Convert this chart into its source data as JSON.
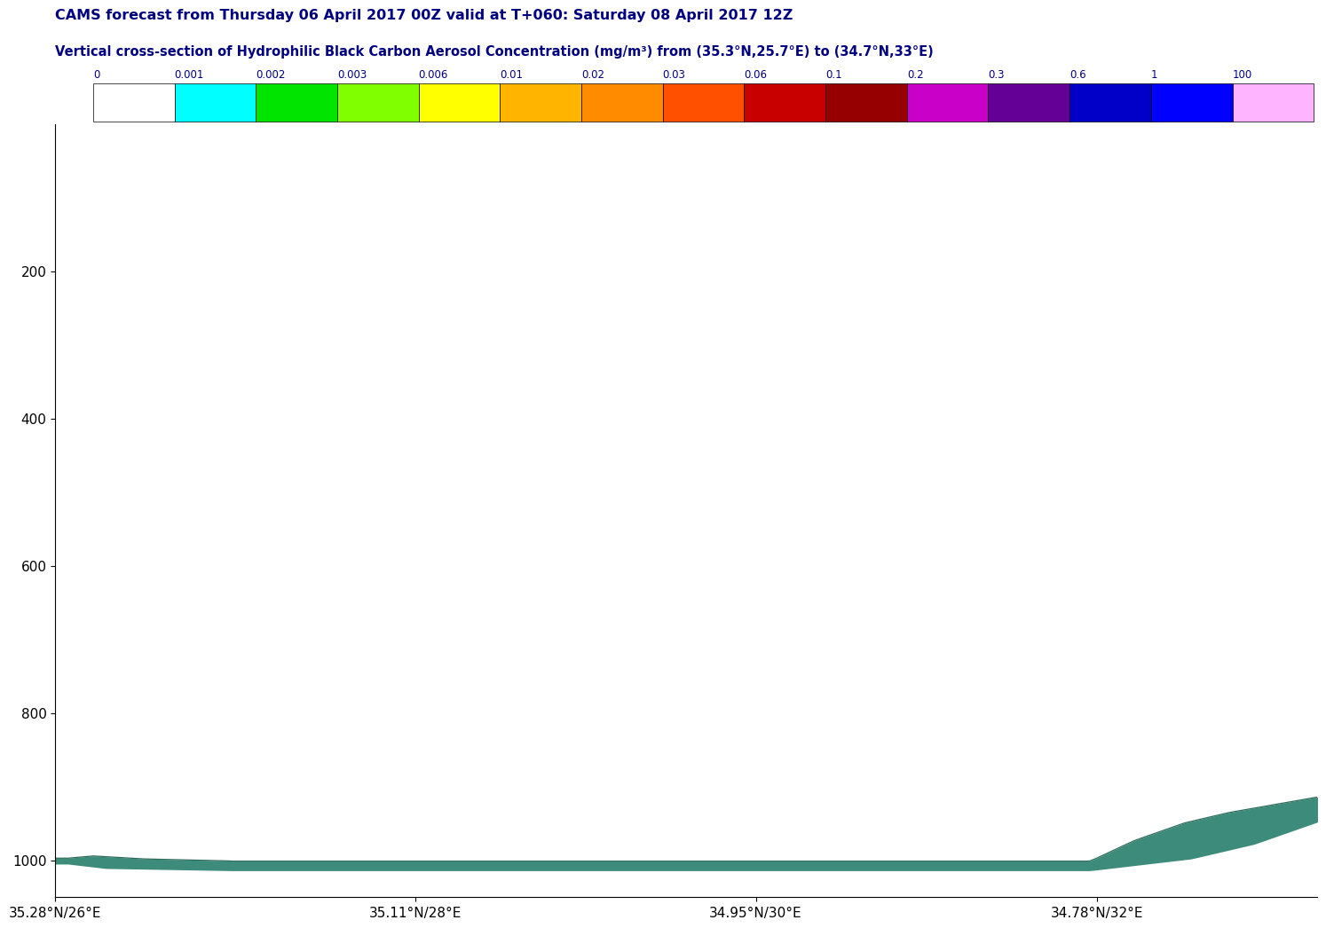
{
  "title1": "CAMS forecast from Thursday 06 April 2017 00Z valid at T+060: Saturday 08 April 2017 12Z",
  "title2": "Vertical cross-section of Hydrophilic Black Carbon Aerosol Concentration (mg/m³) from (35.3°N,25.7°E) to (34.7°N,33°E)",
  "title_color": "#000080",
  "colorbar_labels": [
    "0",
    "0.001",
    "0.002",
    "0.003",
    "0.006",
    "0.01",
    "0.02",
    "0.03",
    "0.06",
    "0.1",
    "0.2",
    "0.3",
    "0.6",
    "1",
    "100"
  ],
  "colorbar_colors": [
    "#ffffff",
    "#00ffff",
    "#00e400",
    "#80ff00",
    "#ffff00",
    "#ffb400",
    "#ff8c00",
    "#ff5000",
    "#c80000",
    "#960000",
    "#c800c8",
    "#640096",
    "#0000c8",
    "#0000ff",
    "#ffb4ff"
  ],
  "ylim": [
    1050,
    0
  ],
  "yticks": [
    200,
    400,
    600,
    800,
    1000
  ],
  "xtick_labels": [
    "35.28°N/26°E",
    "35.11°N/28°E",
    "34.95°N/30°E",
    "34.78°N/32°E"
  ],
  "xtick_positions": [
    0.0,
    0.285,
    0.555,
    0.825
  ],
  "background_color": "#ffffff",
  "plot_bg_color": "#ffffff",
  "surface_color_fill": "#3d8b7a",
  "surface_color_edge": "#2a6b5a",
  "n_points": 200
}
